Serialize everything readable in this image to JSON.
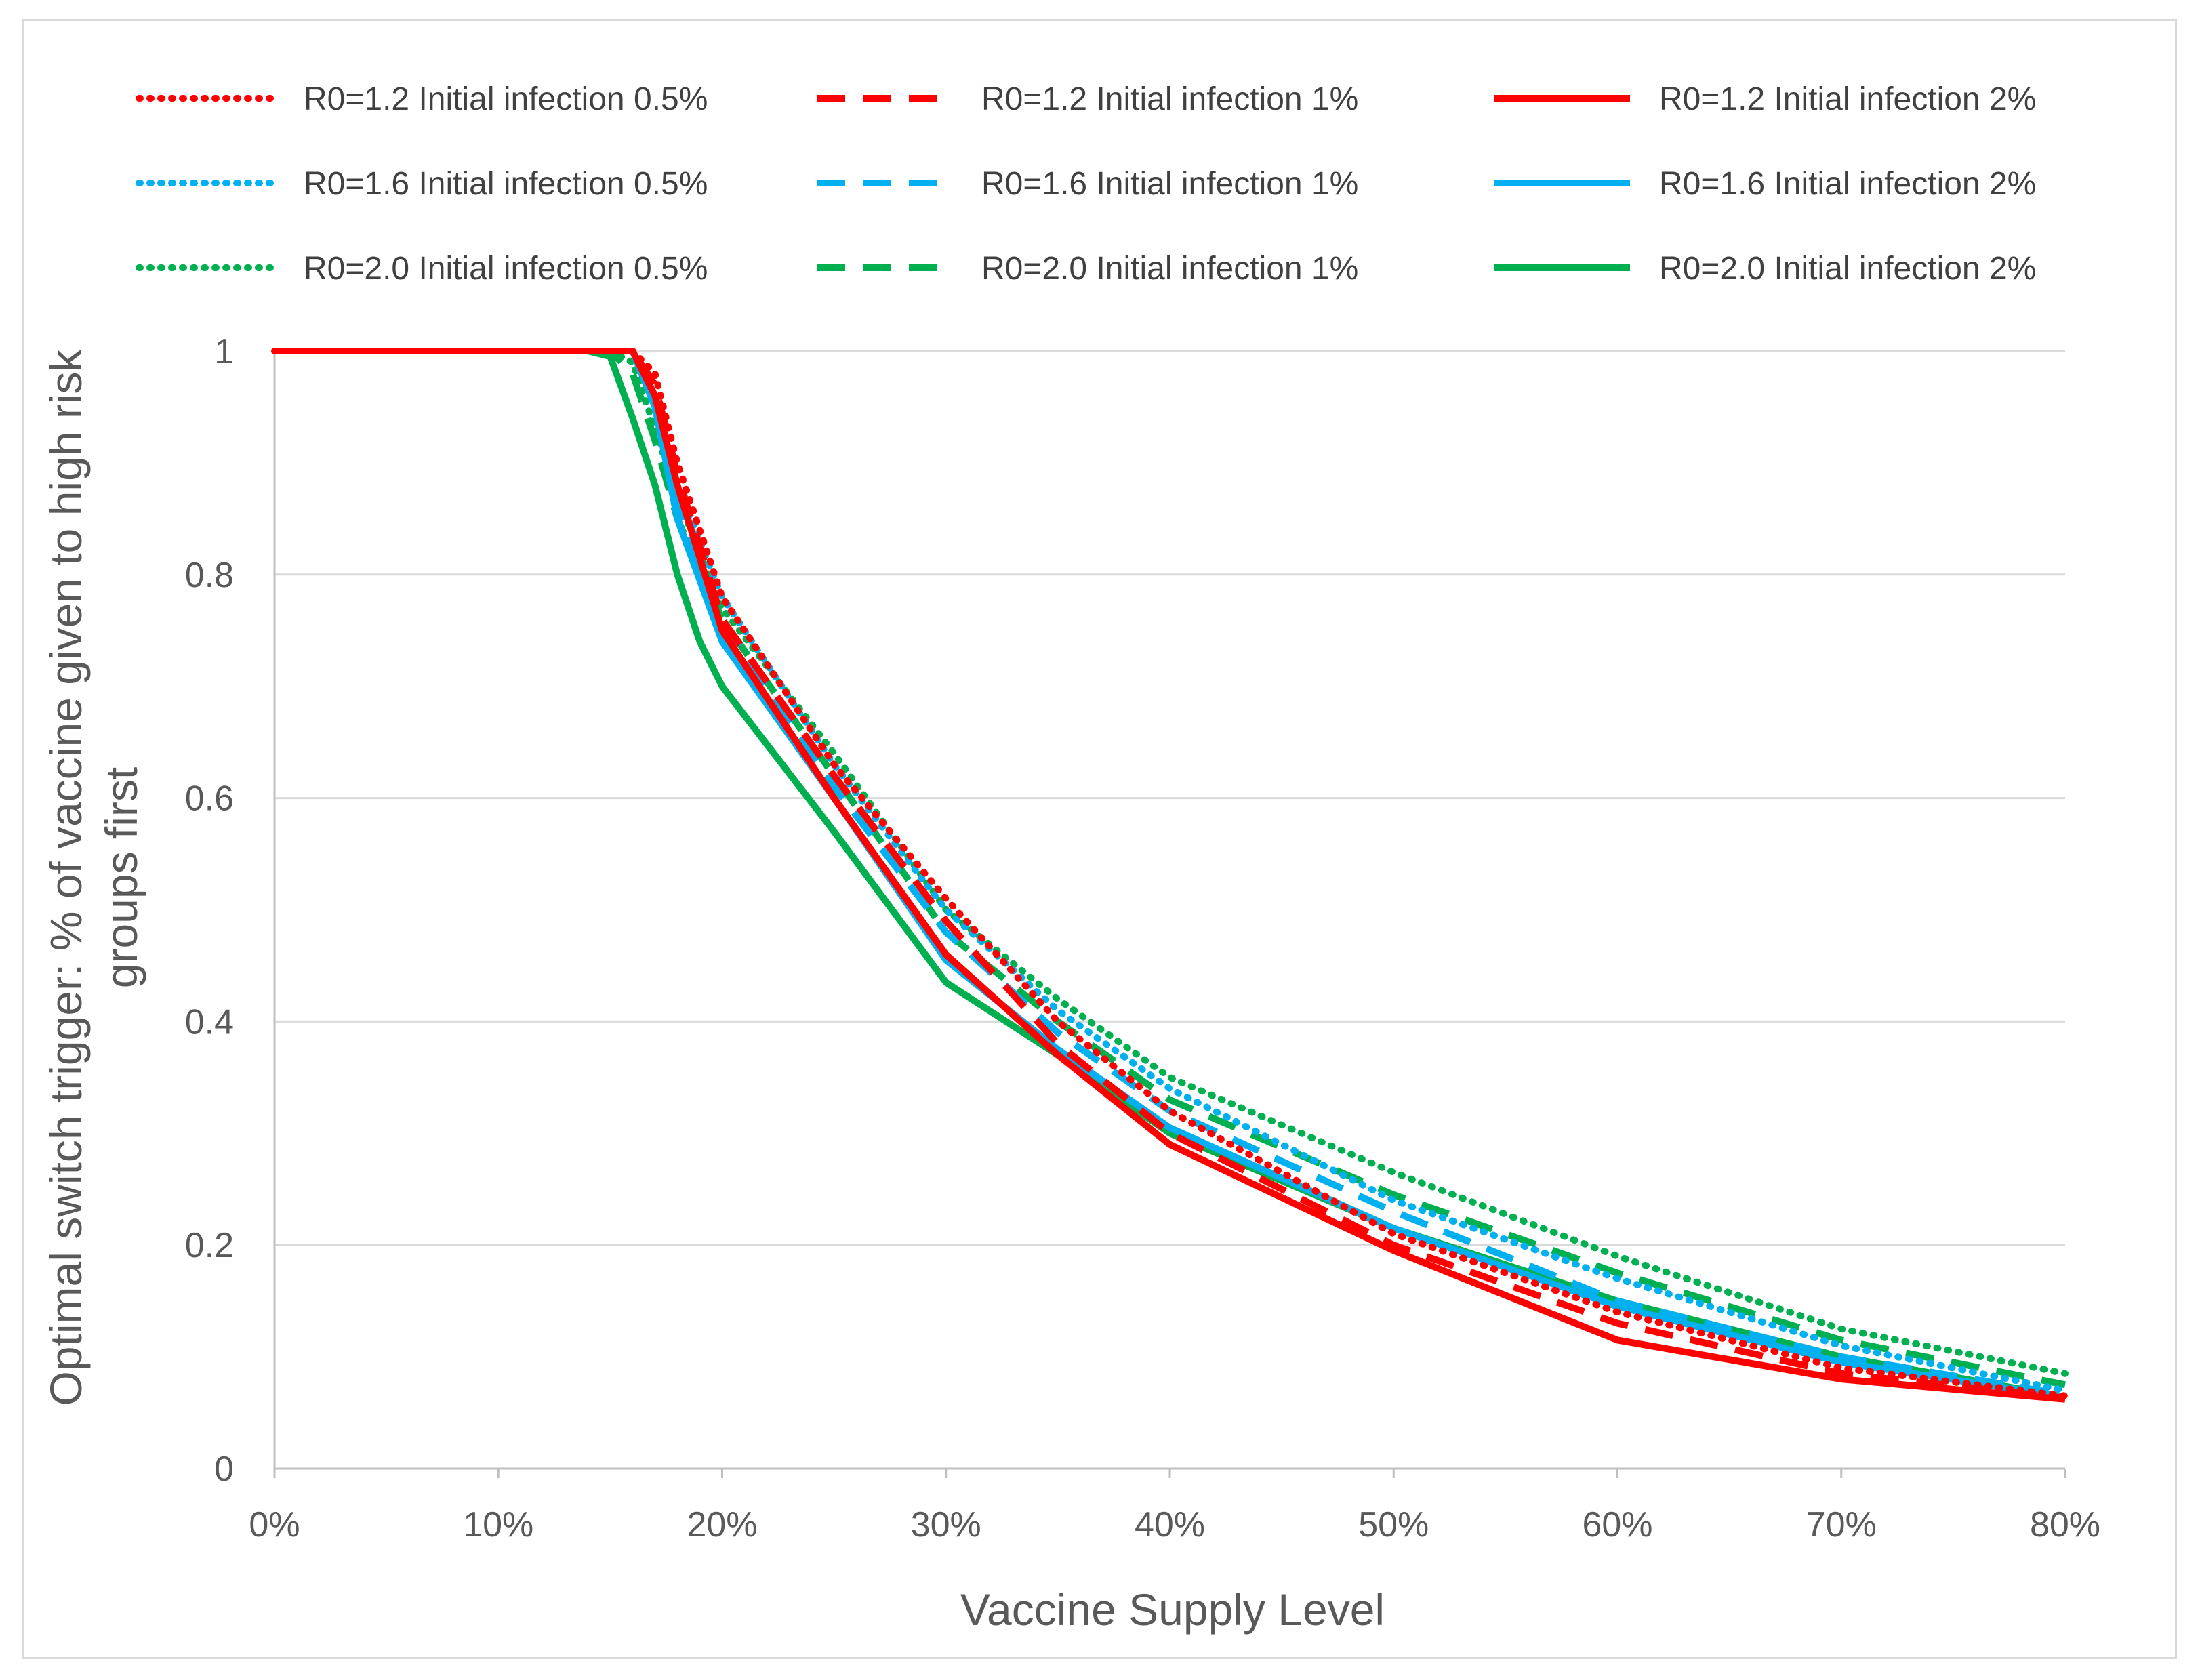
{
  "chart_data": {
    "type": "line",
    "title": "",
    "xlabel": "Vaccine Supply Level",
    "ylabel_lines": [
      "Optimal switch trigger: % of vaccine given to high risk",
      "groups first"
    ],
    "x_tick_labels": [
      "0%",
      "10%",
      "20%",
      "30%",
      "40%",
      "50%",
      "60%",
      "70%",
      "80%"
    ],
    "y_tick_labels": [
      "0",
      "0.2",
      "0.4",
      "0.6",
      "0.8",
      "1"
    ],
    "xlim": [
      0,
      0.8
    ],
    "ylim": [
      0,
      1
    ],
    "grid": true,
    "legend_position": "top",
    "series": [
      {
        "name": "R0=1.2 Initial infection 0.5%",
        "color": "#ff0000",
        "dash": "dotted",
        "x": [
          0,
          0.05,
          0.1,
          0.15,
          0.16,
          0.17,
          0.18,
          0.2,
          0.25,
          0.3,
          0.35,
          0.4,
          0.5,
          0.6,
          0.7,
          0.8
        ],
        "y": [
          1,
          1,
          1,
          1,
          1,
          0.98,
          0.9,
          0.78,
          0.63,
          0.51,
          0.4,
          0.32,
          0.21,
          0.14,
          0.09,
          0.065
        ]
      },
      {
        "name": "R0=1.2 Initial infection 1%",
        "color": "#ff0000",
        "dash": "dashed",
        "x": [
          0,
          0.05,
          0.1,
          0.15,
          0.16,
          0.17,
          0.18,
          0.2,
          0.25,
          0.3,
          0.35,
          0.4,
          0.5,
          0.6,
          0.7,
          0.8
        ],
        "y": [
          1,
          1,
          1,
          1,
          1,
          0.97,
          0.89,
          0.76,
          0.62,
          0.49,
          0.38,
          0.3,
          0.2,
          0.13,
          0.085,
          0.063
        ]
      },
      {
        "name": "R0=1.2 Initial infection 2%",
        "color": "#ff0000",
        "dash": "solid",
        "x": [
          0,
          0.05,
          0.1,
          0.15,
          0.16,
          0.17,
          0.18,
          0.2,
          0.25,
          0.3,
          0.35,
          0.4,
          0.5,
          0.6,
          0.7,
          0.8
        ],
        "y": [
          1,
          1,
          1,
          1,
          1,
          0.96,
          0.88,
          0.75,
          0.6,
          0.46,
          0.37,
          0.29,
          0.195,
          0.115,
          0.08,
          0.062
        ]
      },
      {
        "name": "R0=1.6 Initial infection 0.5%",
        "color": "#00b0f0",
        "dash": "dotted",
        "x": [
          0,
          0.05,
          0.1,
          0.15,
          0.16,
          0.17,
          0.18,
          0.2,
          0.25,
          0.3,
          0.35,
          0.4,
          0.5,
          0.6,
          0.7,
          0.8
        ],
        "y": [
          1,
          1,
          1,
          1,
          1,
          0.96,
          0.88,
          0.78,
          0.63,
          0.5,
          0.41,
          0.34,
          0.24,
          0.17,
          0.11,
          0.07
        ]
      },
      {
        "name": "R0=1.6 Initial infection 1%",
        "color": "#00b0f0",
        "dash": "dashed",
        "x": [
          0,
          0.05,
          0.1,
          0.15,
          0.16,
          0.17,
          0.18,
          0.2,
          0.25,
          0.3,
          0.35,
          0.4,
          0.5,
          0.6,
          0.7,
          0.8
        ],
        "y": [
          1,
          1,
          1,
          1,
          1,
          0.95,
          0.86,
          0.76,
          0.61,
          0.48,
          0.39,
          0.32,
          0.23,
          0.15,
          0.1,
          0.066
        ]
      },
      {
        "name": "R0=1.6 Initial infection 2%",
        "color": "#00b0f0",
        "dash": "solid",
        "x": [
          0,
          0.05,
          0.1,
          0.15,
          0.16,
          0.17,
          0.18,
          0.2,
          0.25,
          0.3,
          0.35,
          0.4,
          0.5,
          0.6,
          0.7,
          0.8
        ],
        "y": [
          1,
          1,
          1,
          1,
          1,
          0.95,
          0.85,
          0.74,
          0.6,
          0.455,
          0.375,
          0.305,
          0.215,
          0.145,
          0.095,
          0.064
        ]
      },
      {
        "name": "R0=2.0 Initial infection 0.5%",
        "color": "#00b050",
        "dash": "dotted",
        "x": [
          0,
          0.05,
          0.1,
          0.15,
          0.16,
          0.17,
          0.18,
          0.2,
          0.25,
          0.3,
          0.35,
          0.4,
          0.5,
          0.6,
          0.7,
          0.8
        ],
        "y": [
          1,
          1,
          1,
          1,
          0.99,
          0.93,
          0.87,
          0.77,
          0.64,
          0.5,
          0.42,
          0.35,
          0.265,
          0.19,
          0.125,
          0.085
        ]
      },
      {
        "name": "R0=2.0 Initial infection 1%",
        "color": "#00b050",
        "dash": "dashed",
        "x": [
          0,
          0.05,
          0.1,
          0.15,
          0.16,
          0.17,
          0.18,
          0.2,
          0.25,
          0.3,
          0.35,
          0.4,
          0.5,
          0.6,
          0.7,
          0.8
        ],
        "y": [
          1,
          1,
          1,
          1,
          0.98,
          0.92,
          0.85,
          0.76,
          0.62,
          0.48,
          0.4,
          0.33,
          0.245,
          0.175,
          0.115,
          0.075
        ]
      },
      {
        "name": "R0=2.0 Initial infection 2%",
        "color": "#00b050",
        "dash": "solid",
        "x": [
          0,
          0.05,
          0.1,
          0.14,
          0.15,
          0.16,
          0.17,
          0.18,
          0.19,
          0.2,
          0.25,
          0.3,
          0.35,
          0.4,
          0.5,
          0.6,
          0.7,
          0.8
        ],
        "y": [
          1,
          1,
          1,
          1,
          0.995,
          0.94,
          0.88,
          0.8,
          0.74,
          0.7,
          0.57,
          0.435,
          0.37,
          0.3,
          0.215,
          0.15,
          0.1,
          0.064
        ]
      }
    ]
  }
}
